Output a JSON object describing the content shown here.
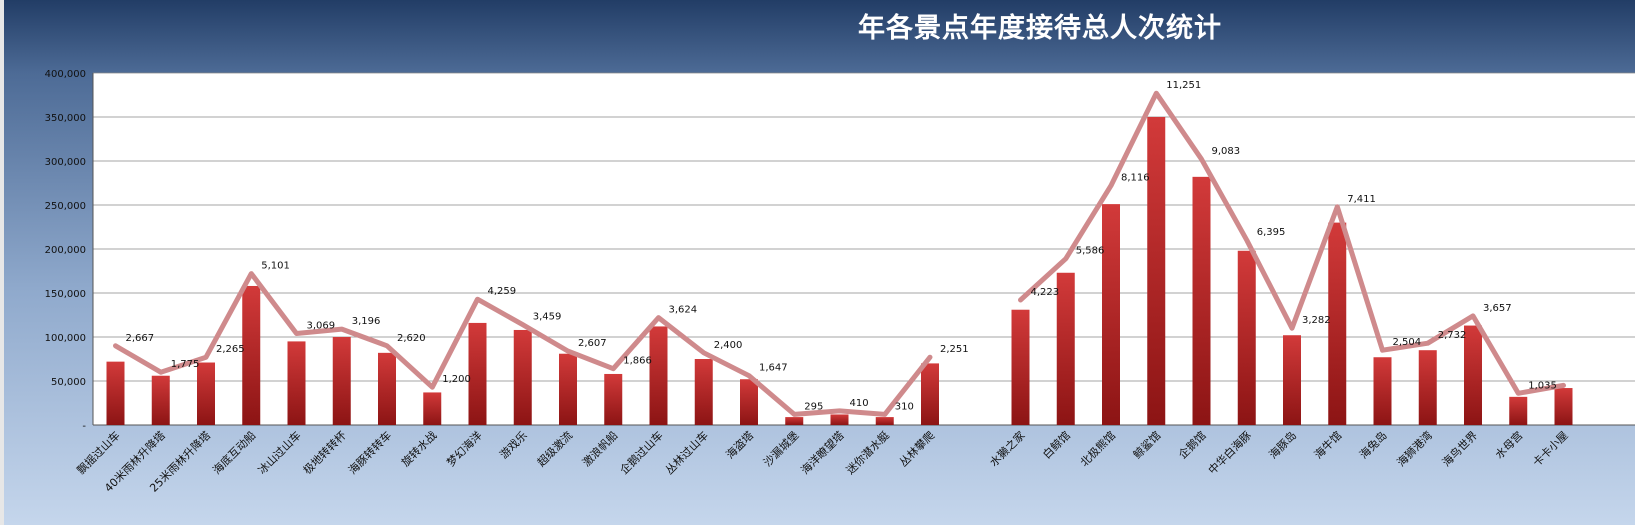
{
  "title": "年各景点年度接待总人次统计",
  "chart_data": {
    "type": "bar",
    "title": "年各景点年度接待总人次统计",
    "xlabel": "",
    "ylabel": "",
    "ylim": [
      0,
      400000
    ],
    "y_ticks": [
      "-",
      "50,000",
      "100,000",
      "150,000",
      "200,000",
      "250,000",
      "300,000",
      "350,000",
      "400,000"
    ],
    "grid": true,
    "legend": "none",
    "categories": [
      "飘摇过山车",
      "40米雨林升降塔",
      "25米雨林升降塔",
      "海底互动船",
      "冰山过山车",
      "极地转转杯",
      "海豚转转车",
      "旋转水战",
      "梦幻海洋",
      "游戏乐",
      "超级激流",
      "激浪帆船",
      "企鹅过山车",
      "丛林过山车",
      "海盗塔",
      "沙漏城堡",
      "海洋瞭望塔",
      "迷你潜水艇",
      "丛林攀爬",
      "",
      "水獭之家",
      "白鲸馆",
      "北极熊馆",
      "鲸鲨馆",
      "企鹅馆",
      "中华白海豚",
      "海豚岛",
      "海牛馆",
      "海兔岛",
      "海狮港湾",
      "海鸟世界",
      "水母宫",
      "卡卡小屋"
    ],
    "series": [
      {
        "type": "bar",
        "values": [
          72000,
          56000,
          71000,
          158000,
          95000,
          100000,
          82000,
          37000,
          116000,
          108000,
          81000,
          58000,
          112000,
          75000,
          52000,
          9000,
          12000,
          9000,
          70000,
          null,
          131000,
          173000,
          251000,
          350000,
          282000,
          198000,
          102000,
          230000,
          77000,
          85000,
          113000,
          32000,
          42000
        ]
      },
      {
        "type": "line",
        "values": [
          90000,
          60000,
          77000,
          172000,
          104000,
          109000,
          90000,
          43000,
          143000,
          114000,
          84000,
          64000,
          122000,
          82000,
          56000,
          12000,
          16000,
          12000,
          77000,
          null,
          142000,
          189000,
          272000,
          377000,
          302000,
          210000,
          110000,
          248000,
          85000,
          93000,
          124000,
          36000,
          45000
        ],
        "labels": [
          "2,667",
          "1,775",
          "2,265",
          "5,101",
          "3,069",
          "3,196",
          "2,620",
          "1,200",
          "4,259",
          "3,459",
          "2,607",
          "1,866",
          "3,624",
          "2,400",
          "1,647",
          "295",
          "410",
          "310",
          "2,251",
          "",
          "4,223",
          "5,586",
          "8,116",
          "11,251",
          "9,083",
          "6,395",
          "3,282",
          "7,411",
          "2,504",
          "2,732",
          "3,657",
          "1,035",
          ""
        ]
      }
    ]
  }
}
